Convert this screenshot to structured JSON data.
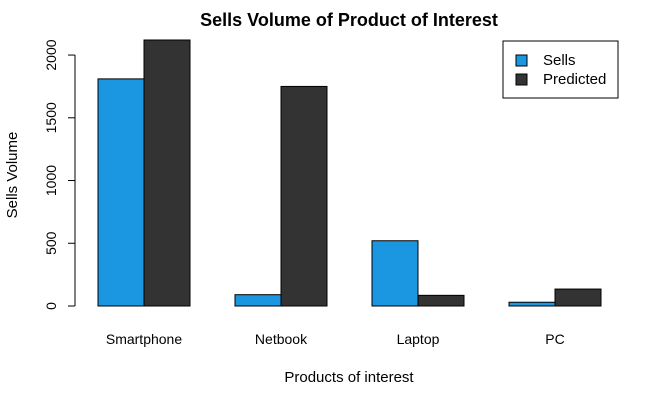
{
  "chart_data": {
    "type": "bar",
    "title": "Sells Volume of Product of Interest",
    "xlabel": "Products of interest",
    "ylabel": "Sells Volume",
    "categories": [
      "Smartphone",
      "Netbook",
      "Laptop",
      "PC"
    ],
    "series": [
      {
        "name": "Sells",
        "color": "#1b96e0",
        "values": [
          1810,
          90,
          520,
          30
        ]
      },
      {
        "name": "Predicted",
        "color": "#333333",
        "values": [
          2120,
          1750,
          85,
          135
        ]
      }
    ],
    "yticks": [
      0,
      500,
      1000,
      1500,
      2000
    ],
    "ylim": [
      0,
      2120
    ],
    "grid": false,
    "legend_position": "top-right"
  }
}
